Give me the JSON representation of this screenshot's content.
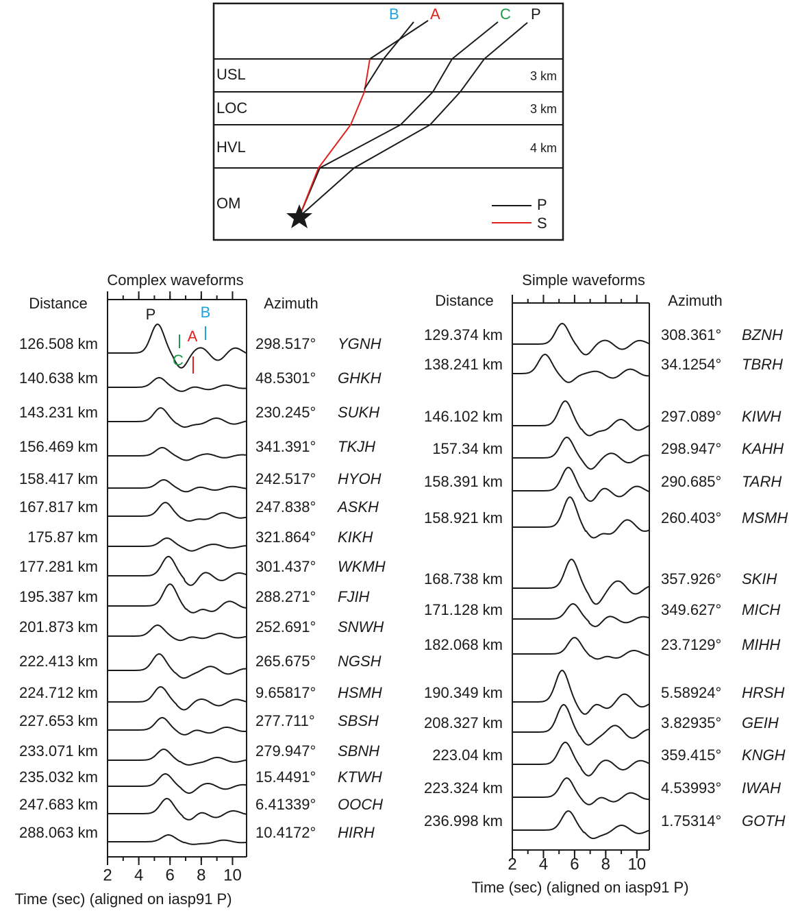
{
  "ray_diagram": {
    "rays": [
      "B",
      "A",
      "C",
      "P"
    ],
    "layers": [
      {
        "name": "USL",
        "thickness": "3 km"
      },
      {
        "name": "LOC",
        "thickness": "3 km"
      },
      {
        "name": "HVL",
        "thickness": "4 km"
      },
      {
        "name": "OM"
      }
    ],
    "legend": [
      "P",
      "S"
    ]
  },
  "panels": [
    {
      "title": "Complex waveforms",
      "distance_header": "Distance",
      "azimuth_header": "Azimuth",
      "xlabel": "Time (sec) (aligned on iasp91 P)",
      "xlim": [
        2,
        10.9
      ],
      "xticks": [
        2,
        4,
        6,
        8,
        10
      ],
      "phase_labels": [
        "P",
        "C",
        "A",
        "B"
      ],
      "traces": [
        {
          "distance": "126.508 km",
          "azimuth": "298.517°",
          "station": "YGNH"
        },
        {
          "distance": "140.638 km",
          "azimuth": "48.5301°",
          "station": "GHKH"
        },
        {
          "distance": "143.231 km",
          "azimuth": "230.245°",
          "station": "SUKH"
        },
        {
          "distance": "156.469 km",
          "azimuth": "341.391°",
          "station": "TKJH"
        },
        {
          "distance": "158.417 km",
          "azimuth": "242.517°",
          "station": "HYOH"
        },
        {
          "distance": "167.817 km",
          "azimuth": "247.838°",
          "station": "ASKH"
        },
        {
          "distance": "175.87 km",
          "azimuth": "321.864°",
          "station": "KIKH"
        },
        {
          "distance": "177.281 km",
          "azimuth": "301.437°",
          "station": "WKMH"
        },
        {
          "distance": "195.387 km",
          "azimuth": "288.271°",
          "station": "FJIH"
        },
        {
          "distance": "201.873 km",
          "azimuth": "252.691°",
          "station": "SNWH"
        },
        {
          "distance": "222.413 km",
          "azimuth": "265.675°",
          "station": "NGSH"
        },
        {
          "distance": "224.712 km",
          "azimuth": "9.65817°",
          "station": "HSMH"
        },
        {
          "distance": "227.653 km",
          "azimuth": "277.711°",
          "station": "SBSH"
        },
        {
          "distance": "233.071 km",
          "azimuth": "279.947°",
          "station": "SBNH"
        },
        {
          "distance": "235.032 km",
          "azimuth": "15.4491°",
          "station": "KTWH"
        },
        {
          "distance": "247.683 km",
          "azimuth": "6.41339°",
          "station": "OOCH"
        },
        {
          "distance": "288.063 km",
          "azimuth": "10.4172°",
          "station": "HIRH"
        }
      ]
    },
    {
      "title": "Simple waveforms",
      "distance_header": "Distance",
      "azimuth_header": "Azimuth",
      "xlabel": "Time (sec) (aligned on iasp91 P)",
      "xlim": [
        2,
        10.8
      ],
      "xticks": [
        2,
        4,
        6,
        8,
        10
      ],
      "traces": [
        {
          "distance": "129.374 km",
          "azimuth": "308.361°",
          "station": "BZNH"
        },
        {
          "distance": "138.241 km",
          "azimuth": "34.1254°",
          "station": "TBRH"
        },
        {
          "distance": "146.102 km",
          "azimuth": "297.089°",
          "station": "KIWH"
        },
        {
          "distance": "157.34 km",
          "azimuth": "298.947°",
          "station": "KAHH"
        },
        {
          "distance": "158.391 km",
          "azimuth": "290.685°",
          "station": "TARH"
        },
        {
          "distance": "158.921 km",
          "azimuth": "260.403°",
          "station": "MSMH"
        },
        {
          "distance": "168.738 km",
          "azimuth": "357.926°",
          "station": "SKIH"
        },
        {
          "distance": "171.128 km",
          "azimuth": "349.627°",
          "station": "MICH"
        },
        {
          "distance": "182.068 km",
          "azimuth": "23.7129°",
          "station": "MIHH"
        },
        {
          "distance": "190.349 km",
          "azimuth": "5.58924°",
          "station": "HRSH"
        },
        {
          "distance": "208.327 km",
          "azimuth": "3.82935°",
          "station": "GEIH"
        },
        {
          "distance": "223.04 km",
          "azimuth": "359.415°",
          "station": "KNGH"
        },
        {
          "distance": "223.324 km",
          "azimuth": "4.53993°",
          "station": "IWAH"
        },
        {
          "distance": "236.998 km",
          "azimuth": "1.75314°",
          "station": "GOTH"
        }
      ]
    }
  ]
}
